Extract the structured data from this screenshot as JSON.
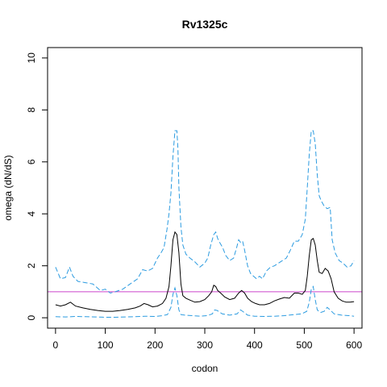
{
  "chart_data": {
    "type": "line",
    "title": "Rv1325c",
    "xlabel": "codon",
    "ylabel": "omega (dN/dS)",
    "xlim": [
      -16,
      616
    ],
    "ylim": [
      -0.4,
      10.4
    ],
    "x_ticks": [
      0,
      100,
      200,
      300,
      400,
      500,
      600
    ],
    "y_ticks": [
      0,
      2,
      4,
      6,
      8,
      10
    ],
    "grid": false,
    "reference_line": {
      "y": 1,
      "color": "#cc44cc"
    },
    "series": [
      {
        "role": "upper",
        "color": "#2b9be0",
        "dash": true,
        "x": [
          0,
          10,
          20,
          28,
          35,
          45,
          60,
          75,
          90,
          100,
          110,
          120,
          135,
          150,
          165,
          175,
          185,
          195,
          205,
          212,
          218,
          224,
          228,
          232,
          236,
          240,
          244,
          246,
          248,
          252,
          256,
          262,
          270,
          280,
          290,
          300,
          306,
          312,
          318,
          322,
          326,
          330,
          336,
          342,
          350,
          358,
          364,
          368,
          372,
          376,
          380,
          386,
          392,
          398,
          404,
          410,
          416,
          424,
          432,
          440,
          448,
          456,
          464,
          472,
          480,
          488,
          496,
          502,
          506,
          510,
          514,
          518,
          522,
          526,
          530,
          534,
          540,
          546,
          552,
          556,
          562,
          570,
          578,
          586,
          594,
          600
        ],
        "y": [
          1.95,
          1.5,
          1.55,
          1.95,
          1.6,
          1.4,
          1.35,
          1.3,
          1.05,
          1.1,
          0.95,
          1.0,
          1.1,
          1.3,
          1.5,
          1.85,
          1.8,
          1.9,
          2.3,
          2.5,
          2.7,
          3.4,
          4.0,
          4.8,
          6.2,
          7.2,
          7.2,
          6.5,
          5.0,
          3.5,
          2.8,
          2.45,
          2.3,
          2.15,
          1.95,
          2.1,
          2.3,
          2.8,
          3.2,
          3.3,
          3.05,
          2.9,
          2.7,
          2.4,
          2.2,
          2.3,
          2.7,
          3.0,
          2.9,
          2.95,
          2.6,
          2.0,
          1.7,
          1.6,
          1.5,
          1.6,
          1.5,
          1.8,
          1.95,
          2.0,
          2.1,
          2.2,
          2.3,
          2.6,
          2.95,
          2.95,
          3.2,
          3.8,
          5.0,
          6.3,
          7.2,
          7.2,
          6.7,
          5.5,
          4.7,
          4.5,
          4.3,
          4.2,
          4.25,
          3.0,
          2.5,
          2.2,
          2.1,
          1.95,
          2.0,
          2.2
        ]
      },
      {
        "role": "median",
        "color": "#000000",
        "dash": false,
        "x": [
          0,
          10,
          20,
          30,
          40,
          55,
          70,
          85,
          100,
          115,
          130,
          145,
          160,
          170,
          178,
          186,
          195,
          205,
          215,
          222,
          228,
          232,
          236,
          240,
          244,
          248,
          252,
          256,
          262,
          270,
          280,
          290,
          300,
          308,
          314,
          318,
          322,
          326,
          332,
          340,
          350,
          360,
          368,
          374,
          380,
          386,
          394,
          402,
          410,
          420,
          430,
          440,
          450,
          460,
          470,
          480,
          488,
          496,
          502,
          506,
          510,
          514,
          518,
          522,
          526,
          530,
          536,
          542,
          548,
          554,
          560,
          568,
          576,
          584,
          592,
          600
        ],
        "y": [
          0.5,
          0.45,
          0.5,
          0.6,
          0.45,
          0.38,
          0.32,
          0.28,
          0.25,
          0.25,
          0.28,
          0.32,
          0.38,
          0.45,
          0.55,
          0.5,
          0.42,
          0.45,
          0.55,
          0.75,
          1.2,
          2.0,
          3.0,
          3.3,
          3.2,
          2.5,
          1.3,
          0.85,
          0.75,
          0.68,
          0.6,
          0.62,
          0.7,
          0.85,
          1.0,
          1.25,
          1.2,
          1.05,
          0.95,
          0.8,
          0.7,
          0.75,
          0.95,
          1.05,
          0.95,
          0.75,
          0.62,
          0.55,
          0.5,
          0.5,
          0.55,
          0.65,
          0.72,
          0.78,
          0.75,
          0.95,
          0.95,
          0.9,
          1.05,
          1.6,
          2.4,
          3.0,
          3.05,
          2.8,
          2.2,
          1.75,
          1.7,
          1.9,
          1.8,
          1.5,
          1.0,
          0.75,
          0.65,
          0.6,
          0.6,
          0.62
        ]
      },
      {
        "role": "lower",
        "color": "#2b9be0",
        "dash": true,
        "x": [
          0,
          20,
          40,
          60,
          80,
          100,
          120,
          140,
          160,
          180,
          200,
          215,
          225,
          232,
          236,
          240,
          244,
          248,
          252,
          260,
          275,
          290,
          305,
          315,
          320,
          325,
          335,
          350,
          365,
          372,
          378,
          386,
          400,
          420,
          440,
          460,
          480,
          495,
          505,
          510,
          514,
          518,
          522,
          526,
          532,
          540,
          546,
          552,
          560,
          575,
          590,
          600
        ],
        "y": [
          0.04,
          0.03,
          0.05,
          0.04,
          0.03,
          0.02,
          0.02,
          0.03,
          0.04,
          0.06,
          0.05,
          0.08,
          0.12,
          0.4,
          0.9,
          1.15,
          0.85,
          0.3,
          0.12,
          0.1,
          0.08,
          0.06,
          0.08,
          0.15,
          0.3,
          0.28,
          0.15,
          0.1,
          0.15,
          0.3,
          0.22,
          0.1,
          0.06,
          0.05,
          0.06,
          0.08,
          0.12,
          0.15,
          0.25,
          0.6,
          1.1,
          1.2,
          0.7,
          0.3,
          0.2,
          0.25,
          0.4,
          0.3,
          0.15,
          0.1,
          0.08,
          0.06
        ]
      }
    ]
  }
}
